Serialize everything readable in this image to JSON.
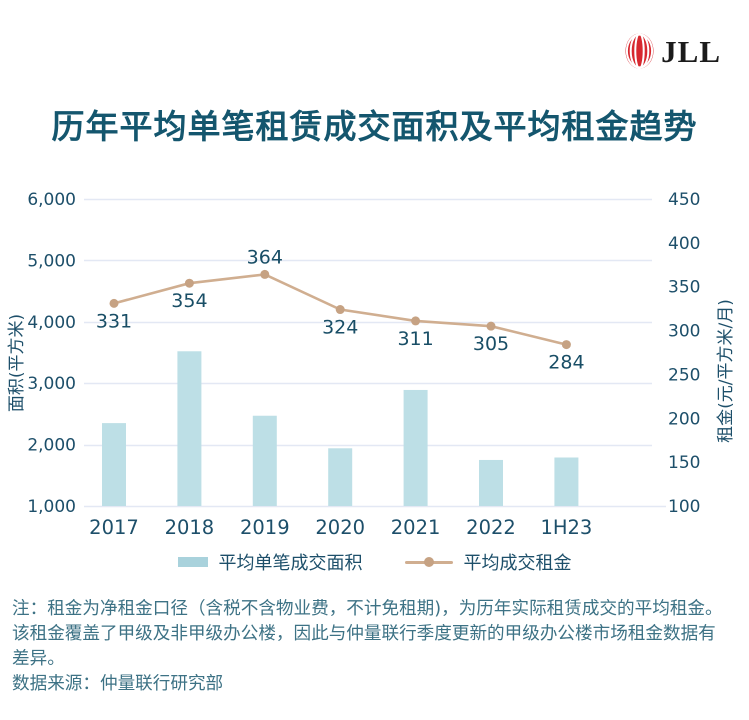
{
  "header": {
    "logo_text": "JLL"
  },
  "title": "历年平均单笔租赁成交面积及平均租金趋势",
  "chart_data": {
    "type": "bar",
    "categories": [
      "2017",
      "2018",
      "2019",
      "2020",
      "2021",
      "2022",
      "1H23"
    ],
    "series": [
      {
        "name": "平均单笔成交面积",
        "type": "bar",
        "axis": "left",
        "values": [
          2350,
          3520,
          2470,
          1940,
          2890,
          1750,
          1790
        ]
      },
      {
        "name": "平均成交租金",
        "type": "line",
        "axis": "right",
        "values": [
          331,
          354,
          364,
          324,
          311,
          305,
          284
        ],
        "label_position": [
          "below",
          "below",
          "above",
          "below",
          "below",
          "below",
          "below"
        ]
      }
    ],
    "left_axis": {
      "title": "面积(平方米)",
      "min": 1000,
      "max": 6000,
      "step": 1000
    },
    "right_axis": {
      "title": "租金(元/平方米/月)",
      "min": 100,
      "max": 450,
      "step": 50
    },
    "grid": true,
    "legend_position": "bottom",
    "colors": {
      "bar": "#bddfe6",
      "legend_bar": "#a9d2dc",
      "line": "#d0ae90",
      "marker": "#c6a283",
      "grid": "#e3e8f4",
      "axis_text": "#1d4f6a",
      "data_label": "#194e66",
      "title": "#14566e",
      "logo_red": "#d7282f"
    }
  },
  "notes": {
    "note": "注：租金为净租金口径（含税不含物业费，不计免租期)，为历年实际租赁成交的平均租金。该租金覆盖了甲级及非甲级办公楼，因此与仲量联行季度更新的甲级办公楼市场租金数据有差异。",
    "source": "数据来源：仲量联行研究部"
  }
}
